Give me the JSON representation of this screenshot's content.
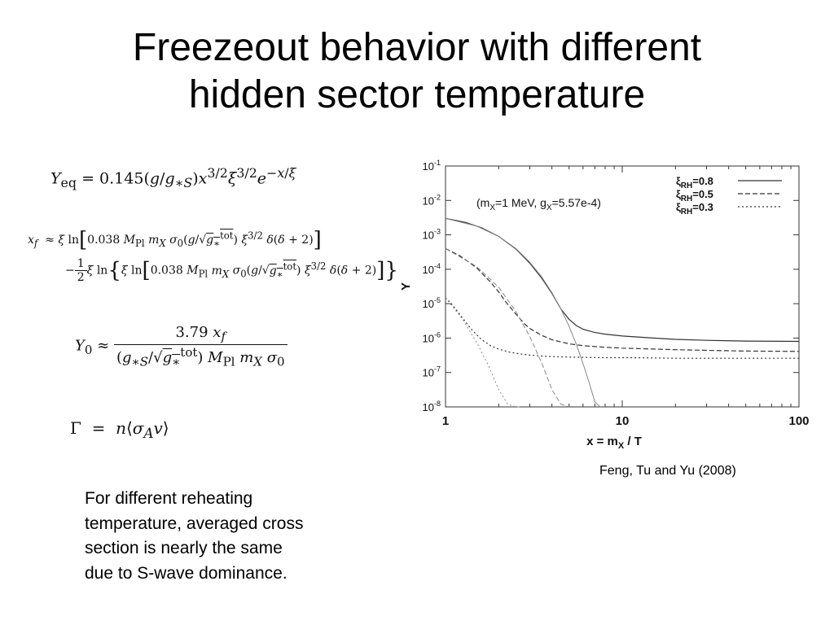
{
  "title": {
    "line1": "Freezeout behavior with different",
    "line2": "hidden sector temperature"
  },
  "equations": {
    "yeq": "Yeq = 0.145(g/g∗S)x^{3/2}ξ^{3/2}e^{−x/ξ}",
    "xf_line1": "xf ≈ ξ ln[0.038 MPl mX σ0(g/√g∗tot) ξ^{3/2} δ(δ+2)]",
    "xf_line2": "−(1/2) ξ ln{ξ ln[0.038 MPl mX σ0(g/√g∗tot) ξ^{3/2} δ(δ+2)]}",
    "y0": "Y0 ≈ 3.79 xf / ((g∗S/√g∗tot) MPl mX σ0)",
    "gamma": "Γ = n⟨σA v⟩"
  },
  "body_text": {
    "line1": "For different reheating",
    "line2": "temperature, averaged cross",
    "line3": "section is nearly the same",
    "line4": "due to S-wave dominance."
  },
  "citation": "Feng, Tu and Yu (2008)",
  "chart_data": {
    "type": "line",
    "xlabel": "x = mX / T",
    "ylabel": "Y",
    "xscale": "log",
    "yscale": "log",
    "xlim": [
      1,
      100
    ],
    "ylim": [
      1e-08,
      0.1
    ],
    "xticks": [
      "1",
      "10",
      "100"
    ],
    "yticks": [
      "10-8",
      "10-7",
      "10-6",
      "10-5",
      "10-4",
      "10-3",
      "10-2",
      "10-1"
    ],
    "annotation": "(mX=1 MeV, gX=5.57e-4)",
    "legend_position": "top-right",
    "grid": false,
    "series": [
      {
        "name": "ξRH=0.8",
        "style": "solid",
        "color": "#333333",
        "x": [
          1,
          1.3,
          1.6,
          2,
          2.5,
          3,
          3.5,
          4,
          4.5,
          5,
          5.5,
          6,
          7,
          8,
          10,
          15,
          20,
          30,
          50,
          100
        ],
        "y": [
          0.003,
          0.0023,
          0.0016,
          0.0009,
          0.00039,
          0.00015,
          5.5e-05,
          2e-05,
          7e-06,
          3.5e-06,
          2.3e-06,
          1.8e-06,
          1.45e-06,
          1.3e-06,
          1.15e-06,
          1e-06,
          9.2e-07,
          8.6e-07,
          8.2e-07,
          8e-07
        ]
      },
      {
        "name": "ξRH=0.5",
        "style": "dashed",
        "color": "#333333",
        "x": [
          1,
          1.2,
          1.5,
          1.8,
          2,
          2.2,
          2.5,
          2.8,
          3,
          3.5,
          4,
          5,
          6,
          8,
          10,
          15,
          20,
          30,
          50,
          100
        ],
        "y": [
          0.0004,
          0.00025,
          0.00011,
          4.2e-05,
          2.2e-05,
          1.1e-05,
          5e-06,
          2.6e-06,
          1.9e-06,
          1.2e-06,
          9e-07,
          6.8e-07,
          6e-07,
          5.4e-07,
          5.1e-07,
          4.8e-07,
          4.6e-07,
          4.4e-07,
          4.2e-07,
          4.1e-07
        ]
      },
      {
        "name": "ξRH=0.3",
        "style": "dotted",
        "color": "#333333",
        "x": [
          1,
          1.1,
          1.2,
          1.4,
          1.6,
          1.8,
          2,
          2.3,
          2.7,
          3,
          3.5,
          4,
          5,
          6,
          8,
          10,
          15,
          20,
          30,
          50,
          100
        ],
        "y": [
          1.5e-05,
          9e-06,
          5e-06,
          1.8e-06,
          9e-07,
          6e-07,
          4.8e-07,
          3.9e-07,
          3.4e-07,
          3.2e-07,
          3e-07,
          2.9e-07,
          2.8e-07,
          2.75e-07,
          2.7e-07,
          2.7e-07,
          2.65e-07,
          2.6e-07,
          2.6e-07,
          2.6e-07,
          2.6e-07
        ]
      },
      {
        "name": "equilibrium ξ=0.8",
        "style": "solid-light",
        "color": "#888888",
        "in_legend": false,
        "x": [
          1,
          1.5,
          2,
          2.5,
          3,
          3.5,
          4,
          4.5,
          5,
          5.5,
          6,
          6.5,
          7,
          7.5
        ],
        "y": [
          0.003,
          0.0018,
          0.0009,
          0.0004,
          0.00016,
          6e-05,
          2.1e-05,
          7e-06,
          2.2e-06,
          6.5e-07,
          1.8e-07,
          5e-08,
          1.4e-08,
          8e-09
        ]
      },
      {
        "name": "equilibrium ξ=0.5",
        "style": "dashed-light",
        "color": "#888888",
        "in_legend": false,
        "x": [
          1,
          1.5,
          2,
          2.5,
          3,
          3.5,
          4,
          4.5,
          5
        ],
        "y": [
          0.0004,
          0.00012,
          3e-05,
          6e-06,
          1.1e-06,
          1.9e-07,
          3.2e-08,
          1.2e-08,
          8e-09
        ]
      },
      {
        "name": "equilibrium ξ=0.3",
        "style": "dotted-light",
        "color": "#888888",
        "in_legend": false,
        "x": [
          1,
          1.25,
          1.5,
          1.75,
          2,
          2.25,
          2.5,
          2.7
        ],
        "y": [
          1.5e-05,
          3.5e-06,
          7.5e-07,
          1.6e-07,
          3.2e-08,
          1.2e-08,
          9e-09,
          8e-09
        ]
      }
    ]
  }
}
